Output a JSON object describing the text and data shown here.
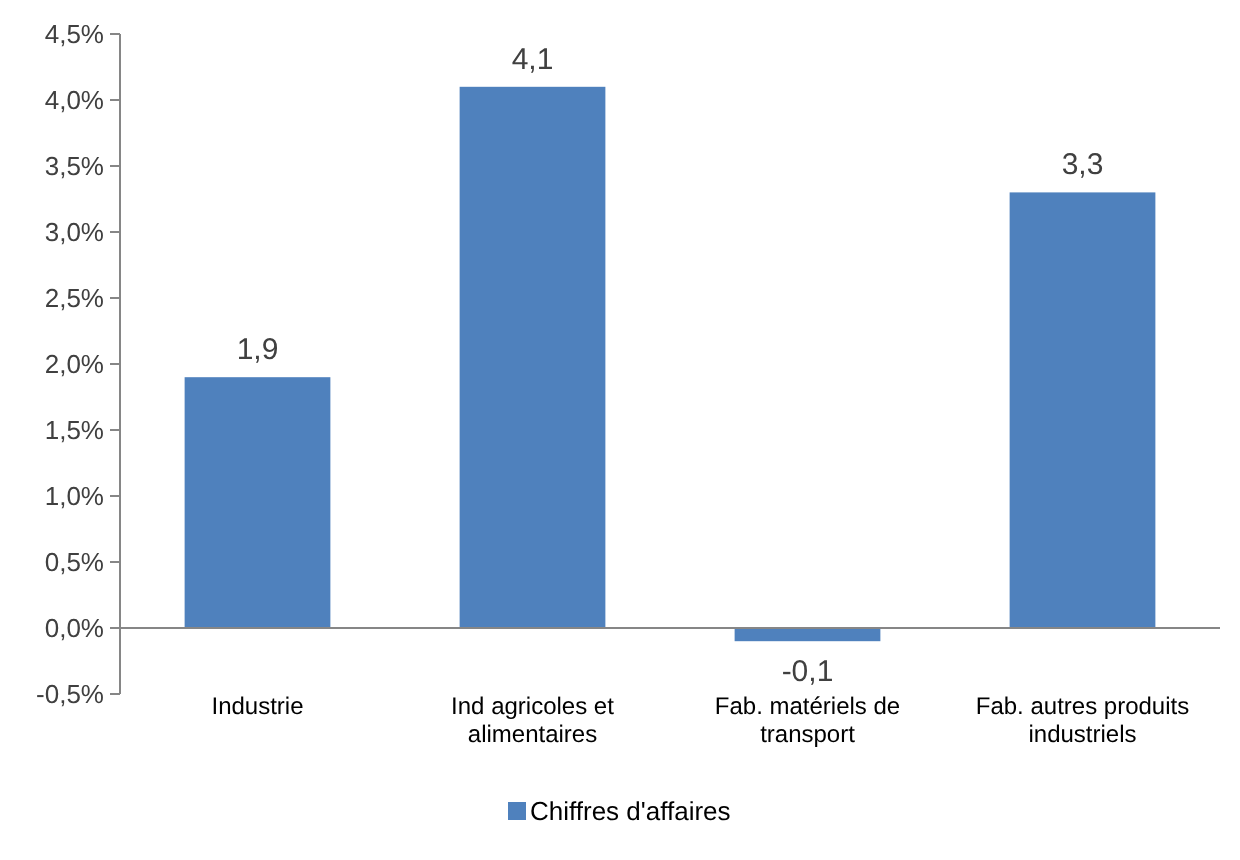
{
  "chart_data": {
    "type": "bar",
    "categories": [
      "Industrie",
      "Ind agricoles et alimentaires",
      "Fab. matériels de transport",
      "Fab. autres produits industriels"
    ],
    "series": [
      {
        "name": "Chiffres d'affaires",
        "color": "#4f81bd",
        "values": [
          1.9,
          4.1,
          -0.1,
          3.3
        ],
        "value_labels": [
          "1,9",
          "4,1",
          "-0,1",
          "3,3"
        ]
      }
    ],
    "ylim": [
      -0.5,
      4.5
    ],
    "yticks": [
      {
        "value": -0.5,
        "label": "-0,5%"
      },
      {
        "value": 0,
        "label": "0,0%"
      },
      {
        "value": 0.5,
        "label": "0,5%"
      },
      {
        "value": 1,
        "label": "1,0%"
      },
      {
        "value": 1.5,
        "label": "1,5%"
      },
      {
        "value": 2,
        "label": "2,0%"
      },
      {
        "value": 2.5,
        "label": "2,5%"
      },
      {
        "value": 3,
        "label": "3,0%"
      },
      {
        "value": 3.5,
        "label": "3,5%"
      },
      {
        "value": 4,
        "label": "4,0%"
      },
      {
        "value": 4.5,
        "label": "4,5%"
      }
    ],
    "legend": "bottom"
  }
}
